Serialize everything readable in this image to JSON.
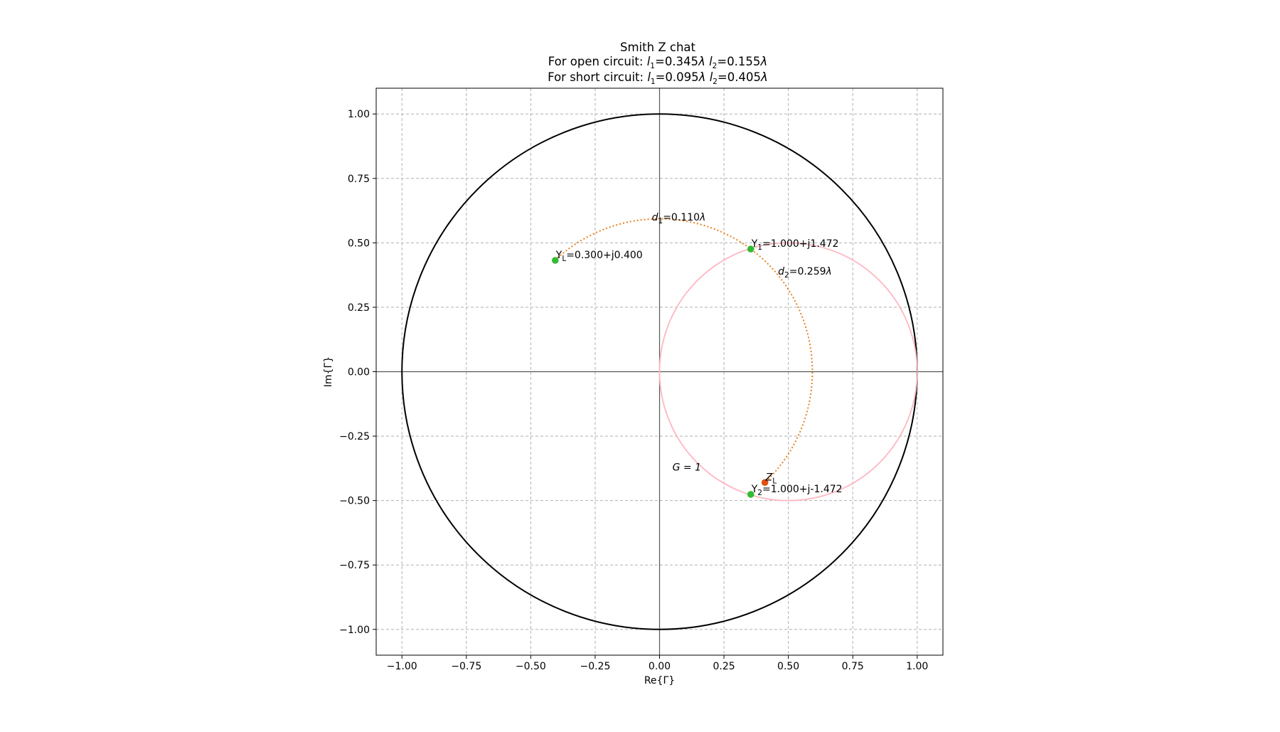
{
  "chart_data": {
    "type": "scatter",
    "title": "Smith Z chat",
    "subtitle_open": {
      "prefix": "For open circuit: ",
      "l1": "0.345",
      "l2": "0.155"
    },
    "subtitle_short": {
      "prefix": "For short circuit: ",
      "l1": "0.095",
      "l2": "0.405"
    },
    "xlabel": "Re{Γ}",
    "ylabel": "Im{Γ}",
    "xlim": [
      -1.1,
      1.1
    ],
    "ylim": [
      -1.1,
      1.1
    ],
    "x_ticks": [
      -1.0,
      -0.75,
      -0.5,
      -0.25,
      0.0,
      0.25,
      0.5,
      0.75,
      1.0
    ],
    "y_ticks": [
      -1.0,
      -0.75,
      -0.5,
      -0.25,
      0.0,
      0.25,
      0.5,
      0.75,
      1.0
    ],
    "x_tick_labels": [
      "−1.00",
      "−0.75",
      "−0.50",
      "−0.25",
      "0.00",
      "0.25",
      "0.50",
      "0.75",
      "1.00"
    ],
    "y_tick_labels": [
      "−1.00",
      "−0.75",
      "−0.50",
      "−0.25",
      "0.00",
      "0.25",
      "0.50",
      "0.75",
      "1.00"
    ],
    "grid": true,
    "unit_circle": {
      "center": [
        0,
        0
      ],
      "radius": 1.0,
      "color": "#000000"
    },
    "g_circle": {
      "center": [
        0.5,
        0
      ],
      "radius": 0.5,
      "color": "#ffb6c1",
      "label": "G = 1",
      "label_pos": [
        0.05,
        -0.37
      ]
    },
    "swr_arc": {
      "center": [
        0,
        0
      ],
      "radius": 0.5932,
      "start_angle_deg": 133.2,
      "end_angle_deg": -46.4,
      "color": "#e8811f"
    },
    "points": [
      {
        "name": "Y_L",
        "x": -0.405,
        "y": 0.432,
        "color": "#33bb33",
        "label": "=0.300+j0.400"
      },
      {
        "name": "Y_1",
        "x": 0.354,
        "y": 0.476,
        "color": "#33bb33",
        "label": "=1.000+j1.472"
      },
      {
        "name": "Y_2",
        "x": 0.354,
        "y": -0.476,
        "color": "#33bb33",
        "label": "=1.000+j-1.472"
      },
      {
        "name": "Z_L",
        "x": 0.409,
        "y": -0.43,
        "color": "#e05010",
        "label": ""
      }
    ],
    "annotations": [
      {
        "name": "d1",
        "label": "=0.110",
        "x": -0.03,
        "y": 0.6
      },
      {
        "name": "d2",
        "label": "=0.259",
        "x": 0.46,
        "y": 0.39
      }
    ]
  }
}
